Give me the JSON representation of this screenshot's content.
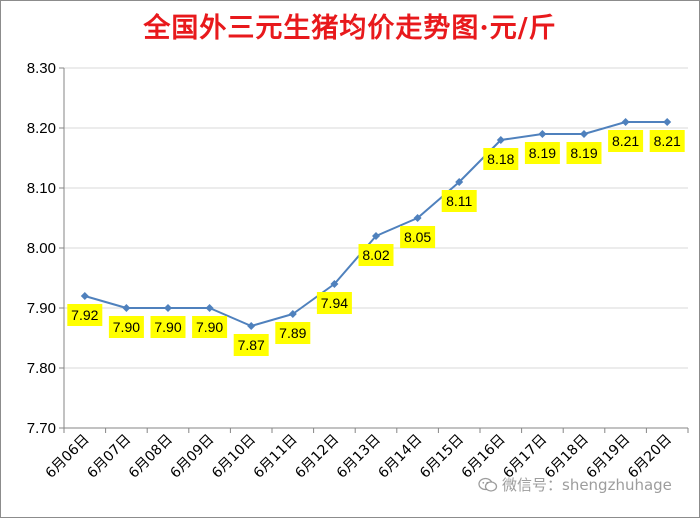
{
  "title": "全国外三元生猪均价走势图·元/斤",
  "watermark": "微信号：shengzhuhage",
  "colors": {
    "title": "#e8191c",
    "line": "#4f81bd",
    "label_bg": "#ffff00",
    "grid": "#d9d9d9"
  },
  "chart_data": {
    "type": "line",
    "title": "全国外三元生猪均价走势图·元/斤",
    "xlabel": "",
    "ylabel": "",
    "ylim": [
      7.7,
      8.3
    ],
    "yticks": [
      "7.70",
      "7.80",
      "7.90",
      "8.00",
      "8.10",
      "8.20",
      "8.30"
    ],
    "grid": true,
    "legend": "none",
    "categories": [
      "6月06日",
      "6月07日",
      "6月08日",
      "6月09日",
      "6月10日",
      "6月11日",
      "6月12日",
      "6月13日",
      "6月14日",
      "6月15日",
      "6月16日",
      "6月17日",
      "6月18日",
      "6月19日",
      "6月20日"
    ],
    "series": [
      {
        "values": [
          7.92,
          7.9,
          7.9,
          7.9,
          7.87,
          7.89,
          7.94,
          8.02,
          8.05,
          8.11,
          8.18,
          8.19,
          8.19,
          8.21,
          8.21
        ],
        "labels": [
          "7.92",
          "7.90",
          "7.90",
          "7.90",
          "7.87",
          "7.89",
          "7.94",
          "8.02",
          "8.05",
          "8.11",
          "8.18",
          "8.19",
          "8.19",
          "8.21",
          "8.21"
        ]
      }
    ]
  }
}
